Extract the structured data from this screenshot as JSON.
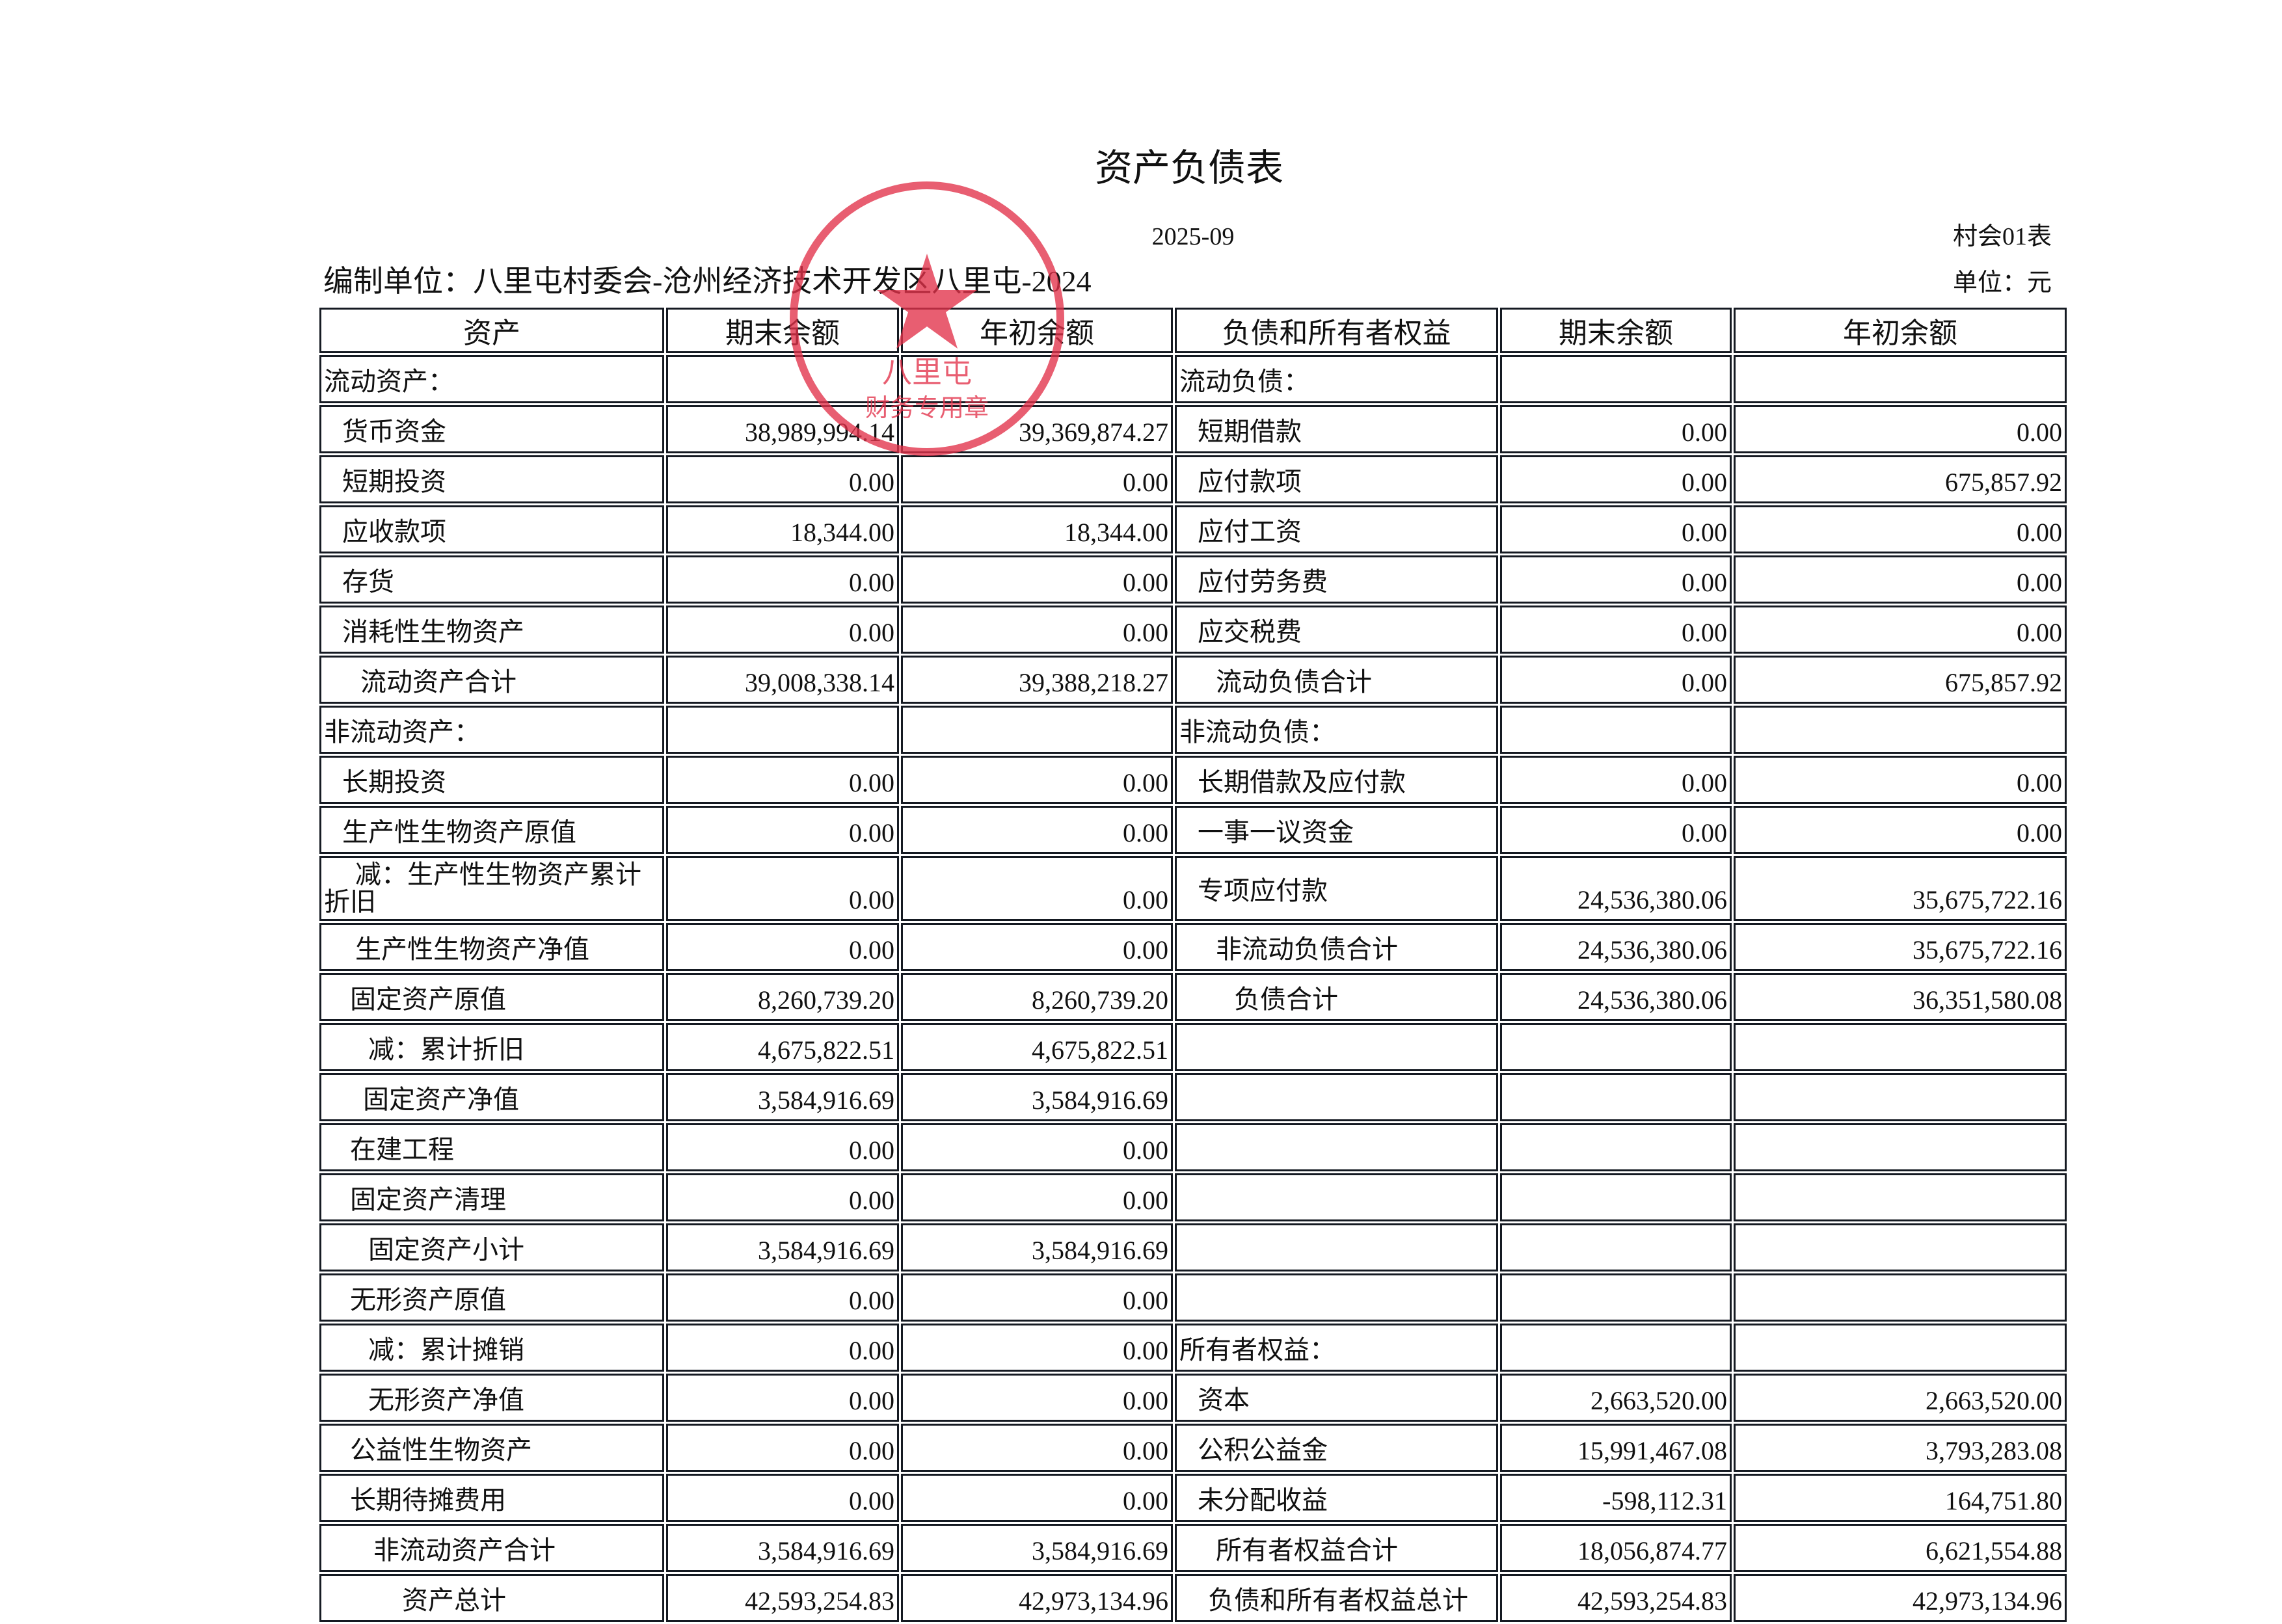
{
  "header": {
    "title": "资产负债表",
    "period": "2025-09",
    "form_no": "村会01表",
    "org": "编制单位：八里屯村委会-沧州经济技术开发区八里屯-2024",
    "unit": "单位：元"
  },
  "stamp": {
    "center": "八里屯",
    "bottom": "财务专用章"
  },
  "table": {
    "columns": [
      "资产",
      "期末余额",
      "年初余额",
      "负债和所有者权益",
      "期末余额",
      "年初余额"
    ],
    "rows": [
      [
        "流动资产：",
        null,
        null,
        "流动负债：",
        null,
        null
      ],
      [
        "货币资金",
        "38,989,994.14",
        "39,369,874.27",
        "短期借款",
        "0.00",
        "0.00"
      ],
      [
        "短期投资",
        "0.00",
        "0.00",
        "应付款项",
        "0.00",
        "675,857.92"
      ],
      [
        "应收款项",
        "18,344.00",
        "18,344.00",
        "应付工资",
        "0.00",
        "0.00"
      ],
      [
        "存货",
        "0.00",
        "0.00",
        "应付劳务费",
        "0.00",
        "0.00"
      ],
      [
        "消耗性生物资产",
        "0.00",
        "0.00",
        "应交税费",
        "0.00",
        "0.00"
      ],
      [
        "流动资产合计",
        "39,008,338.14",
        "39,388,218.27",
        "流动负债合计",
        "0.00",
        "675,857.92"
      ],
      [
        "非流动资产：",
        null,
        null,
        "非流动负债：",
        null,
        null
      ],
      [
        "长期投资",
        "0.00",
        "0.00",
        "长期借款及应付款",
        "0.00",
        "0.00"
      ],
      [
        "生产性生物资产原值",
        "0.00",
        "0.00",
        "一事一议资金",
        "0.00",
        "0.00"
      ],
      [
        "减：生产性生物资产累计折旧",
        "0.00",
        "0.00",
        "专项应付款",
        "24,536,380.06",
        "35,675,722.16"
      ],
      [
        "生产性生物资产净值",
        "0.00",
        "0.00",
        "非流动负债合计",
        "24,536,380.06",
        "35,675,722.16"
      ],
      [
        "固定资产原值",
        "8,260,739.20",
        "8,260,739.20",
        "负债合计",
        "24,536,380.06",
        "36,351,580.08"
      ],
      [
        "减：累计折旧",
        "4,675,822.51",
        "4,675,822.51",
        null,
        null,
        null
      ],
      [
        "固定资产净值",
        "3,584,916.69",
        "3,584,916.69",
        null,
        null,
        null
      ],
      [
        "在建工程",
        "0.00",
        "0.00",
        null,
        null,
        null
      ],
      [
        "固定资产清理",
        "0.00",
        "0.00",
        null,
        null,
        null
      ],
      [
        "固定资产小计",
        "3,584,916.69",
        "3,584,916.69",
        null,
        null,
        null
      ],
      [
        "无形资产原值",
        "0.00",
        "0.00",
        null,
        null,
        null
      ],
      [
        "减：累计摊销",
        "0.00",
        "0.00",
        "所有者权益：",
        null,
        null
      ],
      [
        "无形资产净值",
        "0.00",
        "0.00",
        "资本",
        "2,663,520.00",
        "2,663,520.00"
      ],
      [
        "公益性生物资产",
        "0.00",
        "0.00",
        "公积公益金",
        "15,991,467.08",
        "3,793,283.08"
      ],
      [
        "长期待摊费用",
        "0.00",
        "0.00",
        "未分配收益",
        "-598,112.31",
        "164,751.80"
      ],
      [
        "非流动资产合计",
        "3,584,916.69",
        "3,584,916.69",
        "所有者权益合计",
        "18,056,874.77",
        "6,621,554.88"
      ],
      [
        "资产总计",
        "42,593,254.83",
        "42,973,134.96",
        "负债和所有者权益总计",
        "42,593,254.83",
        "42,973,134.96"
      ]
    ]
  }
}
